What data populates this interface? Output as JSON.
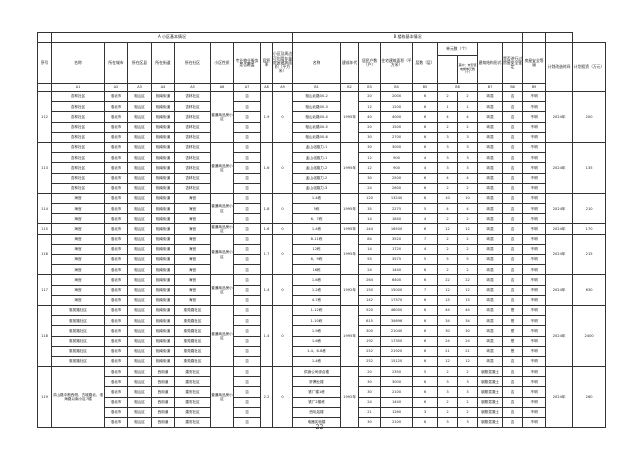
{
  "sections": {
    "a": "A 小区基本情况",
    "b": "B 楼栋基本情况"
  },
  "headers": {
    "no": "序号",
    "name": "名称",
    "city": "所在城市",
    "district": "所在区县",
    "street": "所在街道",
    "community": "所在社区",
    "type": "小区性质",
    "property": "专业物业服务是否覆盖",
    "ratio": "容积率",
    "a9": "小区及周边可利用存量房屋建筑面积（平方米）",
    "b1": "名称",
    "year": "建成年代",
    "households": "居民户数（户）",
    "area": "住宅建筑面积（平方米）",
    "floors": "层数（层）",
    "units": "单元数（个）",
    "units_no_elevator": "其中：未安装电梯单元数（个）",
    "structure": "建筑结构形式",
    "appraised": "是否进行过房屋安全鉴定",
    "safety": "房屋安全等级",
    "plan_time": "计划改造时间",
    "plan_invest": "计划投资（万元）"
  },
  "codes": [
    "A1",
    "A2",
    "A3",
    "A4",
    "A5",
    "A6",
    "A7",
    "A8",
    "A9",
    "B1",
    "B2",
    "B3",
    "B4",
    "B5",
    "B6",
    "B7",
    "B8",
    "B9"
  ],
  "groups": [
    {
      "no": "112",
      "type": "普通商品房小区",
      "ratio": "1.9",
      "a9": "0",
      "year": "1995年",
      "plan_time": "2024年",
      "plan_invest": "200",
      "rows": [
        {
          "name": "杏林社区",
          "city": "淮北市",
          "district": "相山区",
          "street": "相南街道",
          "community": "杏林社区",
          "a7": "否",
          "b1": "相山北路00-2",
          "b3": "20",
          "b4": "2000",
          "b5": "6",
          "b6": "2",
          "b6a": "2",
          "b7": "砖混",
          "b8": "否",
          "b9": "不明"
        },
        {
          "name": "杏林社区",
          "city": "淮北市",
          "district": "相山区",
          "street": "相南街道",
          "community": "杏林社区",
          "a7": "否",
          "b1": "相山北路00-3",
          "b3": "12",
          "b4": "1200",
          "b5": "6",
          "b6": "1",
          "b6a": "1",
          "b7": "砖混",
          "b8": "否",
          "b9": "不明"
        },
        {
          "name": "杏林社区",
          "city": "淮北市",
          "district": "相山区",
          "street": "相南街道",
          "community": "杏林社区",
          "a7": "否",
          "b1": "相山北路00-4",
          "b3": "40",
          "b4": "4000",
          "b5": "6",
          "b6": "4",
          "b6a": "4",
          "b7": "砖混",
          "b8": "否",
          "b9": "不明"
        },
        {
          "name": "杏林社区",
          "city": "淮北市",
          "district": "相山区",
          "street": "相南街道",
          "community": "杏林社区",
          "a7": "否",
          "b1": "相山北路00-5",
          "b3": "20",
          "b4": "1500",
          "b5": "6",
          "b6": "2",
          "b6a": "2",
          "b7": "砖混",
          "b8": "否",
          "b9": "不明"
        },
        {
          "name": "杏林社区",
          "city": "淮北市",
          "district": "相山区",
          "street": "相南街道",
          "community": "杏林社区",
          "a7": "否",
          "b1": "相山北路00-6",
          "b3": "30",
          "b4": "2700",
          "b5": "6",
          "b6": "3",
          "b6a": "3",
          "b7": "砖混",
          "b8": "否",
          "b9": "不明"
        }
      ]
    },
    {
      "no": "113",
      "type": "普通商品房小区",
      "ratio": "1.6",
      "a9": "0",
      "year": "1995年",
      "plan_time": "2024年",
      "plan_invest": "135",
      "rows": [
        {
          "name": "杏林社区",
          "city": "淮北市",
          "district": "相山区",
          "street": "相南街道",
          "community": "杏林社区",
          "a7": "否",
          "b1": "孟山北路力-1",
          "b3": "30",
          "b4": "3000",
          "b5": "6",
          "b6": "3",
          "b6a": "3",
          "b7": "砖混",
          "b8": "否",
          "b9": "不明"
        },
        {
          "name": "杏林社区",
          "city": "淮北市",
          "district": "相山区",
          "street": "相南街道",
          "community": "杏林社区",
          "a7": "否",
          "b1": "孟山北路力-1",
          "b3": "12",
          "b4": "900",
          "b5": "4",
          "b6": "3",
          "b6a": "3",
          "b7": "砖混",
          "b8": "否",
          "b9": "不明"
        },
        {
          "name": "杏林社区",
          "city": "淮北市",
          "district": "相山区",
          "street": "相南街道",
          "community": "杏林社区",
          "a7": "否",
          "b1": "孟山北路力-2",
          "b3": "12",
          "b4": "900",
          "b5": "4",
          "b6": "3",
          "b6a": "3",
          "b7": "砖混",
          "b8": "否",
          "b9": "不明"
        },
        {
          "name": "杏林社区",
          "city": "淮北市",
          "district": "相山区",
          "street": "相南街道",
          "community": "杏林社区",
          "a7": "否",
          "b1": "孟山北路力-2",
          "b3": "30",
          "b4": "2500",
          "b5": "6",
          "b6": "4",
          "b6a": "4",
          "b7": "砖混",
          "b8": "否",
          "b9": "不明"
        },
        {
          "name": "杏林社区",
          "city": "淮北市",
          "district": "相山区",
          "street": "相南街道",
          "community": "杏林社区",
          "a7": "否",
          "b1": "孟山北路力-3",
          "b3": "24",
          "b4": "2600",
          "b5": "6",
          "b6": "2",
          "b6a": "2",
          "b7": "砖混",
          "b8": "否",
          "b9": "不明"
        }
      ]
    },
    {
      "no": "114",
      "type": "普通商品房小区",
      "ratio": "1.8",
      "a9": "0",
      "year": "1995年",
      "plan_time": "2024年",
      "plan_invest": "210",
      "rows": [
        {
          "name": "海宫",
          "city": "淮北市",
          "district": "相山区",
          "street": "相南街道",
          "community": "海宫",
          "a7": "否",
          "b1": "1-4栋",
          "b3": "120",
          "b4": "13240",
          "b5": "6",
          "b6": "10",
          "b6a": "10",
          "b7": "砖混",
          "b8": "否",
          "b9": "不明"
        },
        {
          "name": "海宫",
          "city": "淮北市",
          "district": "相山区",
          "street": "相南街道",
          "community": "海宫",
          "a7": "否",
          "b1": "5栋",
          "b3": "35",
          "b4": "2275",
          "b5": "5",
          "b6": "4",
          "b6a": "4",
          "b7": "砖混",
          "b8": "否",
          "b9": "不明"
        },
        {
          "name": "海宫",
          "city": "淮北市",
          "district": "相山区",
          "street": "相南街道",
          "community": "海宫",
          "a7": "否",
          "b1": "6、7栋",
          "b3": "14",
          "b4": "1840",
          "b5": "4",
          "b6": "2",
          "b6a": "2",
          "b7": "砖混",
          "b8": "否",
          "b9": "不明"
        }
      ]
    },
    {
      "no": "115",
      "type": "普通商品房小区",
      "ratio": "1.6",
      "a9": "0",
      "year": "1995年",
      "plan_time": "2024年",
      "plan_invest": "170",
      "rows": [
        {
          "name": "海宫",
          "city": "淮北市",
          "district": "相山区",
          "street": "相南街道",
          "community": "海宫",
          "a7": "否",
          "b1": "1-4栋",
          "b3": "144",
          "b4": "16500",
          "b5": "6",
          "b6": "12",
          "b6a": "12",
          "b7": "砖混",
          "b8": "否",
          "b9": "不明"
        }
      ]
    },
    {
      "no": "116",
      "type": "普通商品房小区",
      "ratio": "1.7",
      "a9": "0",
      "year": "1995年",
      "plan_time": "2024年",
      "plan_invest": "215",
      "rows": [
        {
          "name": "海宫",
          "city": "淮北市",
          "district": "相山区",
          "street": "相南街道",
          "community": "海宫",
          "a7": "否",
          "b1": "8-11栋",
          "b3": "84",
          "b4": "3520",
          "b5": "7",
          "b6": "2",
          "b6a": "2",
          "b7": "砖混",
          "b8": "否",
          "b9": "不明"
        },
        {
          "name": "海宫",
          "city": "淮北市",
          "district": "相山区",
          "street": "相南街道",
          "community": "海宫",
          "a7": "否",
          "b1": "12栋",
          "b3": "14",
          "b4": "1720",
          "b5": "4",
          "b6": "2",
          "b6a": "2",
          "b7": "砖混",
          "b8": "否",
          "b9": "不明"
        },
        {
          "name": "海宫",
          "city": "淮北市",
          "district": "相山区",
          "street": "相南街道",
          "community": "海宫",
          "a7": "否",
          "b1": "8、9栋",
          "b3": "55",
          "b4": "3575",
          "b5": "5",
          "b6": "5",
          "b6a": "5",
          "b7": "砖混",
          "b8": "否",
          "b9": "不明"
        },
        {
          "name": "海宫",
          "city": "淮北市",
          "district": "相山区",
          "street": "相南街道",
          "community": "海宫",
          "a7": "否",
          "b1": "16栋",
          "b3": "24",
          "b4": "1440",
          "b5": "6",
          "b6": "2",
          "b6a": "2",
          "b7": "砖混",
          "b8": "否",
          "b9": "不明"
        }
      ]
    },
    {
      "no": "117",
      "type": "普通商品房小区",
      "ratio": "1.4",
      "a9": "0",
      "year": "1992年",
      "plan_time": "2024年",
      "plan_invest": "630",
      "rows": [
        {
          "name": "海宫",
          "city": "淮北市",
          "district": "相山区",
          "street": "相南街道",
          "community": "海宫",
          "a7": "否",
          "b1": "1-6栋",
          "b3": "264",
          "b4": "6400",
          "b5": "6",
          "b6": "22",
          "b6a": "22",
          "b7": "砖混",
          "b8": "否",
          "b9": "不明"
        },
        {
          "name": "海宫",
          "city": "淮北市",
          "district": "相山区",
          "street": "相南街道",
          "community": "海宫",
          "a7": "否",
          "b1": "1-2栋",
          "b3": "150",
          "b4": "15000",
          "b5": "7",
          "b6": "12",
          "b6a": "12",
          "b7": "砖混",
          "b8": "否",
          "b9": "不明"
        },
        {
          "name": "海宫",
          "city": "淮北市",
          "district": "相山区",
          "street": "相南街道",
          "community": "海宫",
          "a7": "否",
          "b1": "4-7栋",
          "b3": "142",
          "b4": "17370",
          "b5": "6",
          "b6": "15",
          "b6a": "15",
          "b7": "砖混",
          "b8": "否",
          "b9": "不明"
        }
      ]
    },
    {
      "no": "118",
      "type": "普通商品房小区",
      "ratio": "1.4",
      "a9": "0",
      "year": "1995年",
      "plan_time": "2024年",
      "plan_invest": "2400",
      "rows": [
        {
          "name": "惠苑路社区",
          "city": "淮北市",
          "district": "相山区",
          "street": "相南街道",
          "community": "惠苑路社区",
          "a7": "否",
          "b1": "1-12栋",
          "b3": "520",
          "b4": "48000",
          "b5": "6",
          "b6": "44",
          "b6a": "44",
          "b7": "砖混",
          "b8": "是",
          "b9": "不明"
        },
        {
          "name": "惠苑路社区",
          "city": "淮北市",
          "district": "相山区",
          "street": "相南街道",
          "community": "惠苑路社区",
          "a7": "否",
          "b1": "1-10栋",
          "b3": "615",
          "b4": "34696",
          "b5": "6",
          "b6": "34",
          "b6a": "34",
          "b7": "砖混",
          "b8": "是",
          "b9": "不明"
        },
        {
          "name": "惠苑路社区",
          "city": "淮北市",
          "district": "相山区",
          "street": "相南街道",
          "community": "惠苑路社区",
          "a7": "否",
          "b1": "1-9栋",
          "b3": "300",
          "b4": "21040",
          "b5": "6",
          "b6": "30",
          "b6a": "30",
          "b7": "砖混",
          "b8": "是",
          "b9": "不明"
        },
        {
          "name": "惠苑路社区",
          "city": "淮北市",
          "district": "相山区",
          "street": "相南街道",
          "community": "惠苑路社区",
          "a7": "否",
          "b1": "1-6栋",
          "b3": "192",
          "b4": "17350",
          "b5": "6",
          "b6": "24",
          "b6a": "24",
          "b7": "砖混",
          "b8": "是",
          "b9": "不明"
        },
        {
          "name": "惠苑路社区",
          "city": "淮北市",
          "district": "相山区",
          "street": "相南街道",
          "community": "惠苑路社区",
          "a7": "否",
          "b1": "1-4、6-8栋",
          "b3": "252",
          "b4": "21920",
          "b5": "6",
          "b6": "21",
          "b6a": "21",
          "b7": "砖混",
          "b8": "是",
          "b9": "不明"
        },
        {
          "name": "惠苑路社区",
          "city": "淮北市",
          "district": "相山区",
          "street": "相南街道",
          "community": "惠苑路社区",
          "a7": "否",
          "b1": "1-4栋",
          "b3": "252",
          "b4": "15120",
          "b5": "6",
          "b6": "12",
          "b6a": "12",
          "b7": "砖混",
          "b8": "否",
          "b9": "不明"
        }
      ]
    },
    {
      "no": "119",
      "merged_name": "洪山路中断西侧、古城路北、淮海路以南小区7幢",
      "type": "普通商品房小区",
      "ratio": "2.2",
      "a9": "0",
      "year": "1992年",
      "plan_time": "2024年",
      "plan_invest": "260",
      "rows": [
        {
          "city": "淮北市",
          "district": "相山区",
          "street": "西街道",
          "community": "建安社区",
          "a7": "否",
          "b1": "供销公司综合楼",
          "b3": "20",
          "b4": "2350",
          "b5": "5",
          "b6": "2",
          "b6a": "2",
          "b7": "钢筋混凝土",
          "b8": "否",
          "b9": "不明"
        },
        {
          "city": "淮北市",
          "district": "相山区",
          "street": "西街道",
          "community": "建安社区",
          "a7": "否",
          "b1": "肝腾业楼",
          "b3": "30",
          "b4": "3000",
          "b5": "6",
          "b6": "3",
          "b6a": "3",
          "b7": "钢筋混凝土",
          "b8": "否",
          "b9": "不明"
        },
        {
          "city": "淮北市",
          "district": "相山区",
          "street": "西街道",
          "community": "建安社区",
          "a7": "否",
          "b1": "铁厂楼1栋",
          "b3": "30",
          "b4": "2100",
          "b5": "6",
          "b6": "3",
          "b6a": "3",
          "b7": "钢筋混凝土",
          "b8": "否",
          "b9": "不明"
        },
        {
          "city": "淮北市",
          "district": "相山区",
          "street": "西街道",
          "community": "建安社区",
          "a7": "否",
          "b1": "铁厂2楼栋",
          "b3": "24",
          "b4": "1440",
          "b5": "6",
          "b6": "2",
          "b6a": "2",
          "b7": "钢筋混凝土",
          "b8": "否",
          "b9": "不明"
        },
        {
          "city": "淮北市",
          "district": "相山区",
          "street": "西街道",
          "community": "建安社区",
          "a7": "否",
          "b1": "西轧站楼",
          "b3": "21",
          "b4": "1260",
          "b5": "3",
          "b6": "2",
          "b6a": "2",
          "b7": "钢筋混凝土",
          "b8": "否",
          "b9": "不明"
        },
        {
          "city": "淮北市",
          "district": "相山区",
          "street": "西街道",
          "community": "建安社区",
          "a7": "否",
          "b1": "电器实验楼",
          "b3": "30",
          "b4": "2100",
          "b5": "6",
          "b6": "3",
          "b6a": "3",
          "b7": "钢筋混凝土",
          "b8": "否",
          "b9": "不明"
        }
      ]
    }
  ],
  "page_number": "22"
}
